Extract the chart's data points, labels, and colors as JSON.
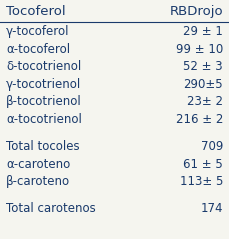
{
  "col1_header": "Tocoferol",
  "col2_header": "RBDrojo",
  "rows": [
    {
      "label": "γ-tocoferol",
      "value": "29 ± 1",
      "blank_before": false
    },
    {
      "label": "α-tocoferol",
      "value": "99 ± 10",
      "blank_before": false
    },
    {
      "label": "δ-tocotrienol",
      "value": "52 ± 3",
      "blank_before": false
    },
    {
      "label": "γ-tocotrienol",
      "value": "290±5",
      "blank_before": false
    },
    {
      "label": "β-tocotrienol",
      "value": "23± 2",
      "blank_before": false
    },
    {
      "label": "α-tocotrienol",
      "value": "216 ± 2",
      "blank_before": false
    },
    {
      "label": "Total tocoles",
      "value": "709",
      "blank_before": true
    },
    {
      "label": "α-caroteno",
      "value": "61 ± 5",
      "blank_before": false
    },
    {
      "label": "β-caroteno",
      "value": "113± 5",
      "blank_before": false
    },
    {
      "label": "Total carotenos",
      "value": "174",
      "blank_before": true
    }
  ],
  "text_color": "#1a3a6b",
  "header_line_color": "#1a3a6b",
  "background_color": "#f5f5ef",
  "font_size": 8.5,
  "header_font_size": 9.5
}
